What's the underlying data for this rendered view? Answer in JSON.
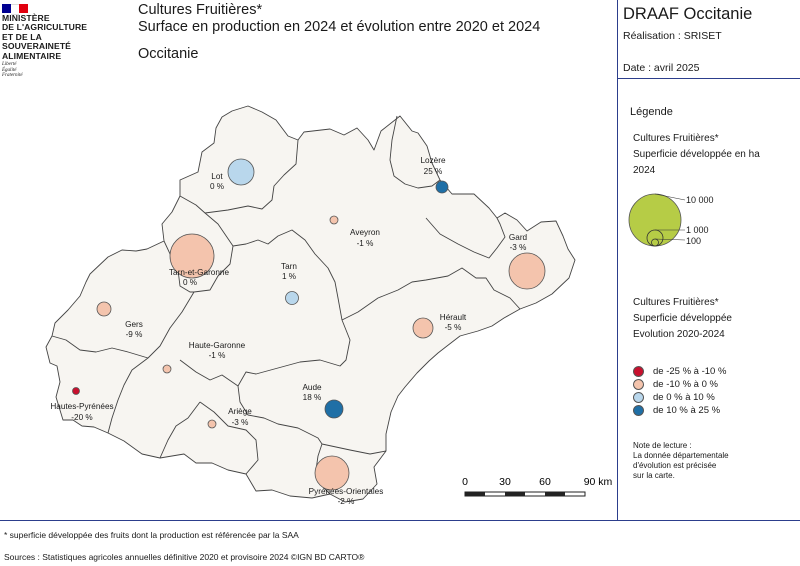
{
  "header": {
    "ministry_lines": [
      "MINISTÈRE",
      "DE L'AGRICULTURE",
      "ET DE LA SOUVERAINETÉ",
      "ALIMENTAIRE"
    ],
    "motto_lines": [
      "Liberté",
      "Égalité",
      "Fraternité"
    ],
    "title_line1": "Cultures Fruitières*",
    "title_line2": "Surface en production en 2024 et évolution entre 2020 et 2024",
    "region": "Occitanie",
    "org": "DRAAF Occitanie",
    "realisation": "Réalisation : SRISET",
    "date": "Date : avril 2025"
  },
  "legend": {
    "title": "Légende",
    "size_title_lines": [
      "Cultures Fruitières*",
      "Superficie développée en ha",
      "2024"
    ],
    "size_labels": [
      "10 000",
      "1 000",
      "100"
    ],
    "color_title_lines": [
      "Cultures Fruitières*",
      "Superficie développée",
      "Evolution 2020-2024"
    ],
    "classes": [
      {
        "label": "de -25 % à -10 %",
        "color": "#c8102e"
      },
      {
        "label": "de -10 % à 0 %",
        "color": "#f4c4ad"
      },
      {
        "label": "de 0 % à 10 %",
        "color": "#b9d7ec"
      },
      {
        "label": "de 10 % à 25 %",
        "color": "#1f6fa6"
      }
    ],
    "size_symbol_color": "#b6cc46",
    "note_lines": [
      "Note de lecture :",
      "La donnée départementale",
      "d'évolution est précisée",
      "sur la carte."
    ]
  },
  "scale": {
    "ticks": [
      "0",
      "30",
      "60",
      "90 km"
    ]
  },
  "departments": [
    {
      "name": "Lot",
      "change": "0 %",
      "class": 2
    },
    {
      "name": "Lozère",
      "change": "25 %",
      "class": 3
    },
    {
      "name": "Aveyron",
      "change": "-1 %",
      "class": 1
    },
    {
      "name": "Gard",
      "change": "-3 %",
      "class": 1
    },
    {
      "name": "Tarn-et-Garonne",
      "change": "0 %",
      "class": 1
    },
    {
      "name": "Tarn",
      "change": "1 %",
      "class": 2
    },
    {
      "name": "Gers",
      "change": "-9 %",
      "class": 1
    },
    {
      "name": "Hérault",
      "change": "-5 %",
      "class": 1
    },
    {
      "name": "Haute-Garonne",
      "change": "-1 %",
      "class": 1
    },
    {
      "name": "Aude",
      "change": "18 %",
      "class": 3
    },
    {
      "name": "Hautes-Pyrénées",
      "change": "-20 %",
      "class": 0
    },
    {
      "name": "Ariège",
      "change": "-3 %",
      "class": 1
    },
    {
      "name": "Pyrénées-Orientales",
      "change": "-2 %",
      "class": 1
    }
  ],
  "footnote": "* superficie développée des fruits dont la production est référencée par la SAA",
  "sources": "Sources : Statistiques agricoles annuelles définitive 2020 et provisoire 2024 ©IGN BD CARTO®",
  "colors": {
    "map_fill": "#f7f5f1",
    "border": "#444444",
    "frame": "#2c3e8c"
  }
}
